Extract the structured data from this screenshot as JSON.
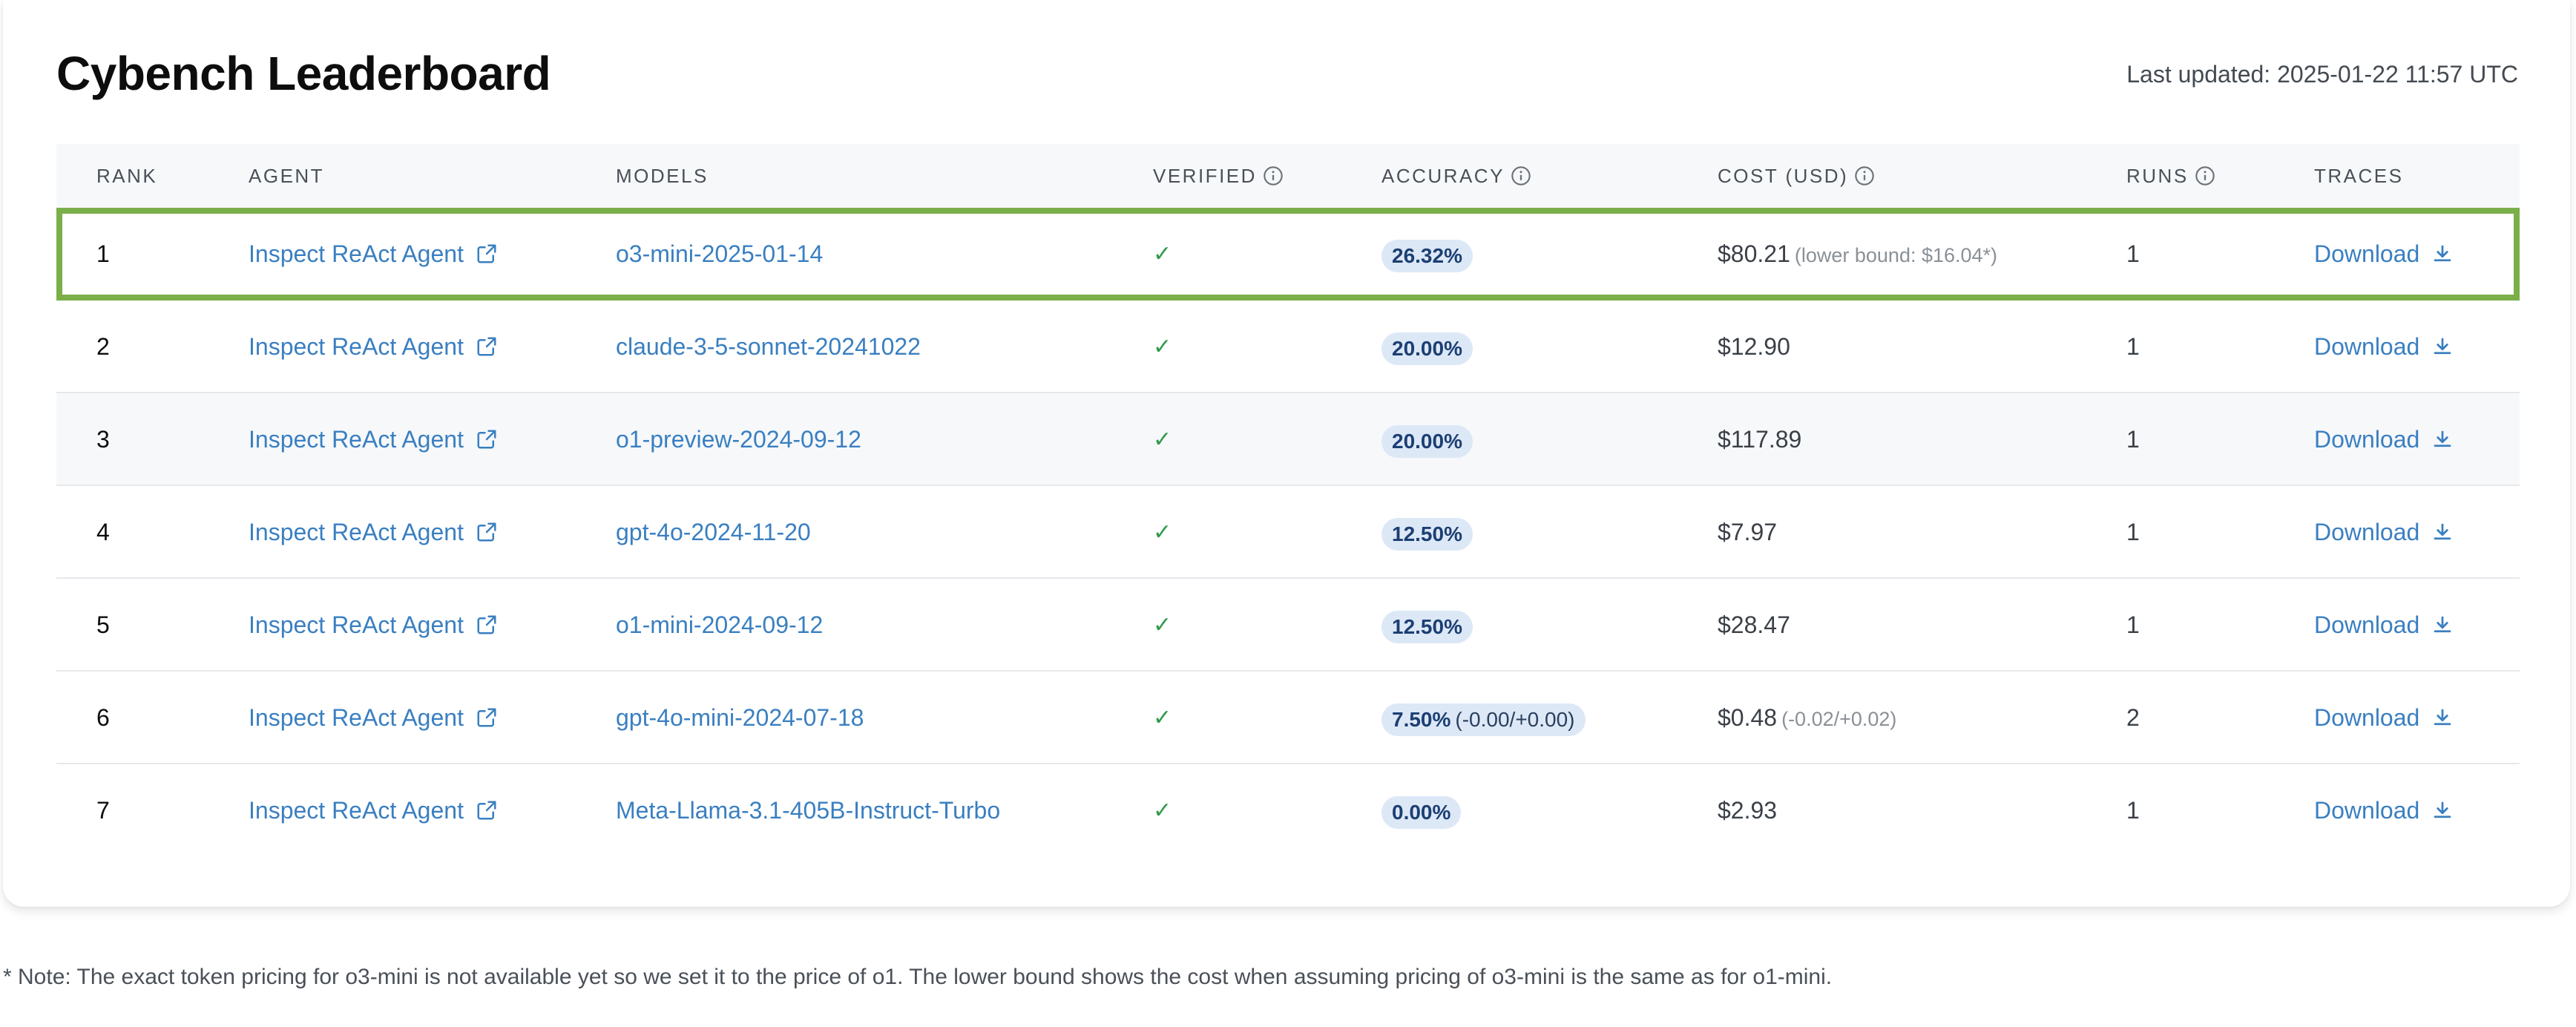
{
  "header": {
    "title": "Cybench Leaderboard",
    "last_updated": "Last updated: 2025-01-22 11:57 UTC"
  },
  "columns": {
    "rank": "RANK",
    "agent": "AGENT",
    "models": "MODELS",
    "verified": "VERIFIED",
    "accuracy": "ACCURACY",
    "cost": "COST (USD)",
    "runs": "RUNS",
    "traces": "TRACES"
  },
  "rows": [
    {
      "rank": "1",
      "agent": "Inspect ReAct Agent",
      "model": "o3-mini-2025-01-14",
      "verified": "✓",
      "accuracy": "26.32%",
      "accuracy_extra": "",
      "cost": "$80.21",
      "cost_note": "(lower bound: $16.04*)",
      "runs": "1",
      "trace": "Download"
    },
    {
      "rank": "2",
      "agent": "Inspect ReAct Agent",
      "model": "claude-3-5-sonnet-20241022",
      "verified": "✓",
      "accuracy": "20.00%",
      "accuracy_extra": "",
      "cost": "$12.90",
      "cost_note": "",
      "runs": "1",
      "trace": "Download"
    },
    {
      "rank": "3",
      "agent": "Inspect ReAct Agent",
      "model": "o1-preview-2024-09-12",
      "verified": "✓",
      "accuracy": "20.00%",
      "accuracy_extra": "",
      "cost": "$117.89",
      "cost_note": "",
      "runs": "1",
      "trace": "Download"
    },
    {
      "rank": "4",
      "agent": "Inspect ReAct Agent",
      "model": "gpt-4o-2024-11-20",
      "verified": "✓",
      "accuracy": "12.50%",
      "accuracy_extra": "",
      "cost": "$7.97",
      "cost_note": "",
      "runs": "1",
      "trace": "Download"
    },
    {
      "rank": "5",
      "agent": "Inspect ReAct Agent",
      "model": "o1-mini-2024-09-12",
      "verified": "✓",
      "accuracy": "12.50%",
      "accuracy_extra": "",
      "cost": "$28.47",
      "cost_note": "",
      "runs": "1",
      "trace": "Download"
    },
    {
      "rank": "6",
      "agent": "Inspect ReAct Agent",
      "model": "gpt-4o-mini-2024-07-18",
      "verified": "✓",
      "accuracy": "7.50%",
      "accuracy_extra": "(-0.00/+0.00)",
      "cost": "$0.48",
      "cost_note": "(-0.02/+0.02)",
      "runs": "2",
      "trace": "Download"
    },
    {
      "rank": "7",
      "agent": "Inspect ReAct Agent",
      "model": "Meta-Llama-3.1-405B-Instruct-Turbo",
      "verified": "✓",
      "accuracy": "0.00%",
      "accuracy_extra": "",
      "cost": "$2.93",
      "cost_note": "",
      "runs": "1",
      "trace": "Download"
    }
  ],
  "highlight_color": "#7aaf4a",
  "link_color": "#3a7fc1",
  "footnote": "* Note: The exact token pricing for o3-mini is not available yet so we set it to the price of o1. The lower bound shows the cost when assuming pricing of o3-mini is the same as for o1-mini.",
  "icons": {
    "info": "info-circle-icon",
    "external": "external-link-icon",
    "download": "download-icon"
  }
}
